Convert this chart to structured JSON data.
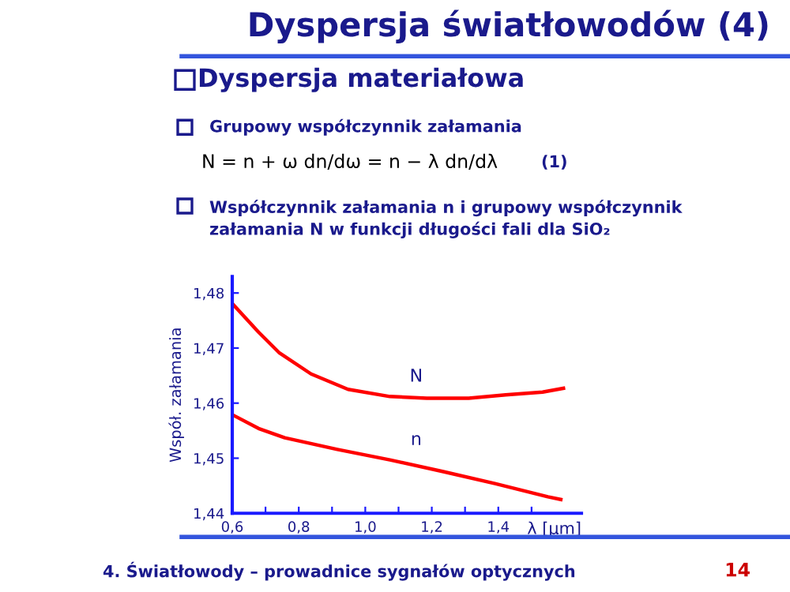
{
  "chart_data": {
    "type": "line",
    "title": "Dyspersja światłowodów (4)",
    "subtitle": "Dyspersja materiałowa",
    "annotations": [
      "Grupowy współczynnik załamania",
      "N = n + ω dn/dω = n − λ dn/dλ",
      "(1)",
      "Współczynnik załamania n i grupowy współczynnik\nzałamania N w funkcji długości fali dla SiO₂",
      "4. Światłowody – prowadnice sygnałów optycznych",
      "14"
    ],
    "xlabel": "λ [μm]",
    "ylabel": "Współ. załamania",
    "x": [
      0.6,
      0.679,
      0.742,
      0.837,
      0.948,
      1.074,
      1.185,
      1.311,
      1.422,
      1.533,
      1.596
    ],
    "series": [
      {
        "name": "N",
        "color": "#ff0000",
        "values": [
          1.4781,
          1.4729,
          1.4691,
          1.4653,
          1.4625,
          1.4612,
          1.4609,
          1.4609,
          1.4615,
          1.462,
          1.4627
        ]
      },
      {
        "name": "n",
        "color": "#ff0000",
        "x": [
          0.6,
          0.679,
          0.758,
          0.916,
          1.074,
          1.232,
          1.39,
          1.549,
          1.588
        ],
        "values": [
          1.4579,
          1.4554,
          1.4537,
          1.4516,
          1.4497,
          1.4476,
          1.4454,
          1.443,
          1.4425
        ]
      }
    ],
    "xlim": [
      0.6,
      1.65
    ],
    "ylim": [
      1.44,
      1.483
    ],
    "xticks": [
      {
        "value": 0.6,
        "label": "0,6"
      },
      {
        "value": 0.7,
        "label": null
      },
      {
        "value": 0.8,
        "label": "0,8"
      },
      {
        "value": 0.9,
        "label": null
      },
      {
        "value": 1.0,
        "label": "1,0"
      },
      {
        "value": 1.1,
        "label": null
      },
      {
        "value": 1.2,
        "label": "1,2"
      },
      {
        "value": 1.3,
        "label": null
      },
      {
        "value": 1.4,
        "label": "1,4"
      },
      {
        "value": 1.5,
        "label": null
      }
    ],
    "yticks": [
      {
        "value": 1.44,
        "label": "1,44"
      },
      {
        "value": 1.45,
        "label": "1,45"
      },
      {
        "value": 1.46,
        "label": "1,46"
      },
      {
        "value": 1.47,
        "label": "1,47"
      },
      {
        "value": 1.48,
        "label": "1,48"
      }
    ],
    "grid": false,
    "legend": false,
    "marker": "none",
    "line_style": "solid"
  }
}
